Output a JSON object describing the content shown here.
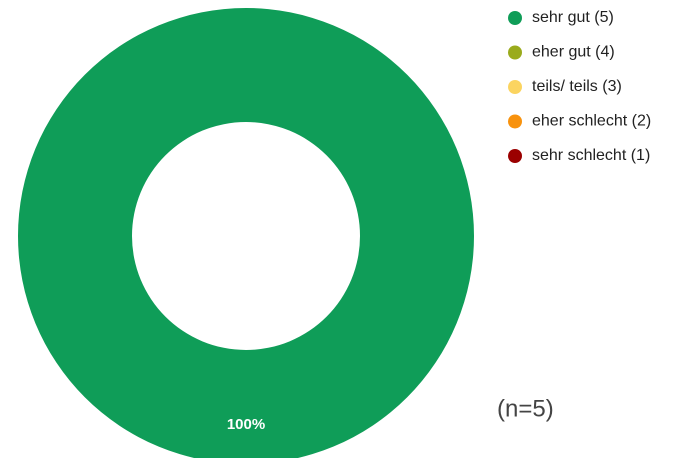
{
  "chart_data": {
    "type": "donut",
    "categories": [
      "sehr gut (5)",
      "eher gut (4)",
      "teils/ teils (3)",
      "eher schlecht (2)",
      "sehr schlecht (1)"
    ],
    "values": [
      100,
      0,
      0,
      0,
      0
    ],
    "value_labels": [
      "100%",
      null,
      null,
      null,
      null
    ],
    "colors": [
      "#0f9d58",
      "#9aab1c",
      "#fbd460",
      "#f8920d",
      "#9b0000"
    ],
    "annotation": "(n=5)",
    "legend": "top-right"
  }
}
